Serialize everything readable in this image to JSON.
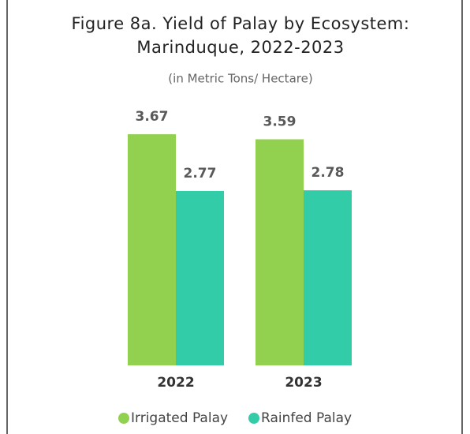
{
  "chart_data": {
    "type": "bar",
    "title": [
      "Figure 8a. Yield of Palay by Ecosystem:",
      "Marinduque, 2022-2023"
    ],
    "subtitle": "(in Metric Tons/ Hectare)",
    "categories": [
      "2022",
      "2023"
    ],
    "series": [
      {
        "name": "Irrigated Palay",
        "color": "#92d050",
        "values": [
          3.67,
          3.59
        ]
      },
      {
        "name": "Rainfed Palay",
        "color": "#33cca9",
        "values": [
          2.77,
          2.78
        ]
      }
    ],
    "legend": "bottom"
  }
}
